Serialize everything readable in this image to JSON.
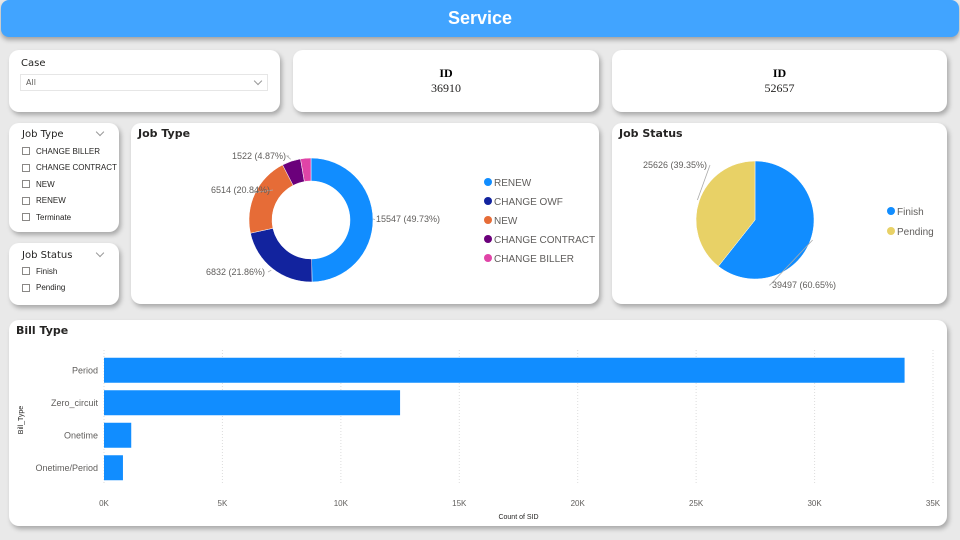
{
  "header": {
    "title": "Service",
    "color": "#41a4ff"
  },
  "case_slicer": {
    "title": "Case",
    "selected": "All"
  },
  "job_type_slicer": {
    "title": "Job Type",
    "options": [
      "CHANGE BILLER",
      "CHANGE CONTRACT",
      "NEW",
      "RENEW",
      "Terminate"
    ]
  },
  "job_status_slicer": {
    "title": "Job Status",
    "options": [
      "Finish",
      "Pending"
    ]
  },
  "kpi_cards": [
    {
      "label": "ID",
      "value": "36910"
    },
    {
      "label": "ID",
      "value": "52657"
    }
  ],
  "chart_data": [
    {
      "type": "pie",
      "variant": "donut",
      "title": "Job Type",
      "legend_position": "right",
      "categories": [
        "RENEW",
        "CHANGE OWF",
        "NEW",
        "CHANGE CONTRACT",
        "CHANGE BILLER"
      ],
      "values": [
        15547,
        6832,
        6514,
        1522,
        847
      ],
      "colors": [
        "#118dff",
        "#12239e",
        "#e66c37",
        "#6b007b",
        "#e044a7"
      ],
      "data_labels": [
        "15547 (49.73%)",
        "6832 (21.86%)",
        "6514 (20.84%)",
        "1522 (4.87%)",
        null
      ]
    },
    {
      "type": "pie",
      "title": "Job Status",
      "legend_position": "right",
      "categories": [
        "Finish",
        "Pending"
      ],
      "values": [
        39497,
        25626
      ],
      "colors": [
        "#118dff",
        "#e8d166"
      ],
      "data_labels": [
        "39497 (60.65%)",
        "25626 (39.35%)"
      ]
    },
    {
      "type": "bar",
      "orientation": "horizontal",
      "title": "Bill Type",
      "categories": [
        "Period",
        "Zero_circuit",
        "Onetime",
        "Onetime/Period"
      ],
      "values": [
        33800,
        12500,
        1150,
        800
      ],
      "color": "#118dff",
      "xlabel": "Count of SID",
      "ylabel": "Bill_Type",
      "xlim": [
        0,
        35000
      ],
      "xticks": [
        "0K",
        "5K",
        "10K",
        "15K",
        "20K",
        "25K",
        "30K",
        "35K"
      ],
      "grid": true
    }
  ]
}
